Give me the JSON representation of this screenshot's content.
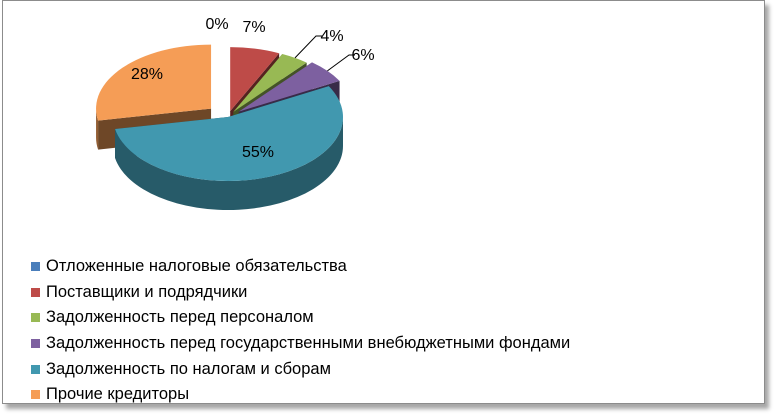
{
  "chart_data": {
    "type": "pie",
    "style": "3d-exploded",
    "legend_position": "bottom-left",
    "labels": [
      "Отложенные налоговые обязательства",
      "Поставщики и подрядчики",
      "Задолженность перед персоналом",
      "Задолженность перед государственными внебюджетными фондами",
      "Задолженность по налогам и сборам",
      "Прочие кредиторы"
    ],
    "values": [
      0,
      7,
      4,
      6,
      55,
      28
    ],
    "value_labels": [
      "0%",
      "7%",
      "4%",
      "6%",
      "55%",
      "28%"
    ],
    "colors": [
      "#4a7ebb",
      "#be4b48",
      "#98b954",
      "#7d60a0",
      "#4198af",
      "#f59d56"
    ]
  }
}
